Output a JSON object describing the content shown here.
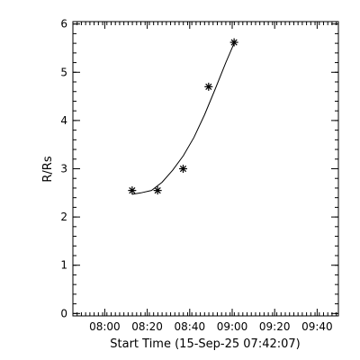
{
  "chart_data": {
    "type": "scatter",
    "title": "",
    "xlabel": "Start Time (15-Sep-25 07:42:07)",
    "ylabel": "R/Rs",
    "x_tick_labels": [
      "08:00",
      "08:20",
      "08:40",
      "09:00",
      "09:20",
      "09:40"
    ],
    "x_ticks_minutes": [
      18,
      38,
      58,
      78,
      98,
      118
    ],
    "y_ticks": [
      0,
      1,
      2,
      3,
      4,
      5,
      6
    ],
    "xlim_minutes": [
      3,
      128
    ],
    "ylim": [
      -0.05,
      6.05
    ],
    "x_unit": "minutes after 07:42:07",
    "grid": false,
    "marker": "asterisk",
    "series": [
      {
        "name": "",
        "points": [
          {
            "time": "08:13",
            "x": 30.9,
            "y": 2.55
          },
          {
            "time": "08:25",
            "x": 42.9,
            "y": 2.55
          },
          {
            "time": "08:37",
            "x": 54.9,
            "y": 3.0
          },
          {
            "time": "08:49",
            "x": 66.9,
            "y": 4.7
          },
          {
            "time": "09:01",
            "x": 78.9,
            "y": 5.62
          }
        ]
      }
    ],
    "fit": {
      "type": "quadratic",
      "x": [
        30.9,
        35,
        40,
        45,
        50,
        55,
        60,
        65,
        70,
        75,
        78.9
      ],
      "y": [
        2.47,
        2.5,
        2.55,
        2.72,
        2.97,
        3.27,
        3.65,
        4.12,
        4.65,
        5.2,
        5.6
      ]
    }
  }
}
